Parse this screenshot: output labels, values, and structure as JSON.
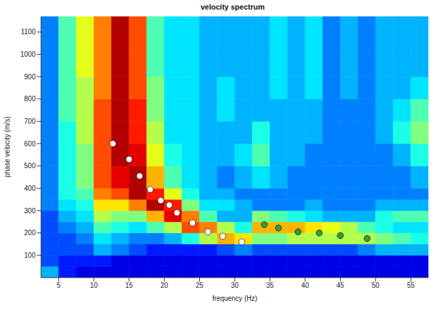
{
  "chart_data": {
    "type": "heatmap",
    "title": "velocity spectrum",
    "x_label": "frequency (Hz)",
    "y_label": "phase velocity (m/s)",
    "xlim": [
      2.5,
      57.5
    ],
    "ylim": [
      0,
      1170
    ],
    "xticks": [
      5,
      10,
      15,
      20,
      25,
      30,
      35,
      40,
      45,
      50,
      55
    ],
    "yticks": [
      100,
      200,
      300,
      400,
      500,
      600,
      700,
      800,
      900,
      1000,
      1100
    ],
    "grid": false,
    "color_range": [
      0,
      1
    ],
    "cells": {
      "x_edges": [
        2.5,
        5,
        7.5,
        10,
        12.5,
        15,
        17.5,
        20,
        22.5,
        25,
        27.5,
        30,
        32.5,
        35,
        37.5,
        40,
        42.5,
        45,
        47.5,
        50,
        52.5,
        55,
        57.5
      ],
      "y_edges": [
        0,
        50,
        100,
        150,
        200,
        250,
        300,
        350,
        400,
        500,
        600,
        700,
        800,
        900,
        1000,
        1170
      ],
      "values": [
        [
          0.3,
          0.15,
          0.1,
          0.1,
          0.1,
          0.1,
          0.1,
          0.1,
          0.1,
          0.1,
          0.1,
          0.1,
          0.1,
          0.1,
          0.1,
          0.1,
          0.1,
          0.1,
          0.1,
          0.1,
          0.1,
          0.1
        ],
        [
          0.2,
          0.15,
          0.15,
          0.15,
          0.1,
          0.1,
          0.1,
          0.1,
          0.1,
          0.1,
          0.1,
          0.1,
          0.1,
          0.1,
          0.1,
          0.1,
          0.1,
          0.1,
          0.1,
          0.1,
          0.1,
          0.1
        ],
        [
          0.2,
          0.2,
          0.2,
          0.3,
          0.25,
          0.2,
          0.15,
          0.15,
          0.15,
          0.15,
          0.2,
          0.25,
          0.2,
          0.2,
          0.2,
          0.2,
          0.2,
          0.2,
          0.25,
          0.3,
          0.3,
          0.3
        ],
        [
          0.2,
          0.2,
          0.25,
          0.35,
          0.3,
          0.25,
          0.25,
          0.3,
          0.4,
          0.55,
          0.7,
          0.65,
          0.5,
          0.5,
          0.55,
          0.55,
          0.55,
          0.55,
          0.55,
          0.5,
          0.45,
          0.4
        ],
        [
          0.2,
          0.25,
          0.3,
          0.45,
          0.4,
          0.35,
          0.45,
          0.55,
          0.8,
          0.75,
          0.55,
          0.4,
          0.7,
          0.7,
          0.7,
          0.65,
          0.6,
          0.55,
          0.45,
          0.4,
          0.35,
          0.35
        ],
        [
          0.2,
          0.3,
          0.35,
          0.55,
          0.5,
          0.5,
          0.7,
          0.9,
          0.75,
          0.45,
          0.3,
          0.3,
          0.5,
          0.45,
          0.4,
          0.35,
          0.3,
          0.3,
          0.3,
          0.4,
          0.45,
          0.45
        ],
        [
          0.25,
          0.35,
          0.4,
          0.65,
          0.65,
          0.75,
          0.95,
          0.85,
          0.5,
          0.35,
          0.35,
          0.3,
          0.25,
          0.25,
          0.25,
          0.3,
          0.25,
          0.25,
          0.25,
          0.3,
          0.3,
          0.3
        ],
        [
          0.25,
          0.4,
          0.45,
          0.75,
          0.8,
          0.95,
          0.85,
          0.6,
          0.4,
          0.3,
          0.3,
          0.25,
          0.25,
          0.25,
          0.25,
          0.25,
          0.25,
          0.25,
          0.25,
          0.25,
          0.25,
          0.25
        ],
        [
          0.25,
          0.4,
          0.5,
          0.8,
          0.9,
          0.95,
          0.7,
          0.45,
          0.35,
          0.3,
          0.25,
          0.3,
          0.35,
          0.3,
          0.25,
          0.25,
          0.25,
          0.25,
          0.25,
          0.25,
          0.25,
          0.3
        ],
        [
          0.25,
          0.4,
          0.5,
          0.8,
          0.95,
          0.9,
          0.6,
          0.4,
          0.35,
          0.3,
          0.3,
          0.35,
          0.45,
          0.3,
          0.3,
          0.25,
          0.25,
          0.25,
          0.25,
          0.25,
          0.3,
          0.4
        ],
        [
          0.25,
          0.4,
          0.55,
          0.8,
          0.95,
          0.85,
          0.55,
          0.35,
          0.35,
          0.3,
          0.3,
          0.3,
          0.4,
          0.3,
          0.3,
          0.3,
          0.25,
          0.25,
          0.25,
          0.3,
          0.4,
          0.5
        ],
        [
          0.25,
          0.45,
          0.55,
          0.8,
          0.95,
          0.85,
          0.5,
          0.35,
          0.35,
          0.3,
          0.35,
          0.3,
          0.3,
          0.3,
          0.3,
          0.3,
          0.25,
          0.25,
          0.25,
          0.3,
          0.35,
          0.45
        ],
        [
          0.25,
          0.45,
          0.55,
          0.75,
          0.95,
          0.8,
          0.5,
          0.35,
          0.35,
          0.3,
          0.35,
          0.3,
          0.3,
          0.35,
          0.3,
          0.35,
          0.25,
          0.3,
          0.25,
          0.3,
          0.3,
          0.35
        ],
        [
          0.25,
          0.45,
          0.6,
          0.75,
          0.95,
          0.8,
          0.45,
          0.35,
          0.35,
          0.3,
          0.3,
          0.3,
          0.3,
          0.35,
          0.3,
          0.35,
          0.25,
          0.3,
          0.25,
          0.3,
          0.3,
          0.3
        ],
        [
          0.25,
          0.45,
          0.6,
          0.75,
          0.95,
          0.8,
          0.45,
          0.35,
          0.35,
          0.3,
          0.3,
          0.3,
          0.3,
          0.35,
          0.3,
          0.35,
          0.25,
          0.3,
          0.25,
          0.3,
          0.3,
          0.3
        ]
      ]
    },
    "series": [
      {
        "color": "#ffffff",
        "marker": "circle",
        "x": [
          12.7,
          15,
          16.5,
          18,
          19.5,
          20.7,
          21.8,
          24,
          26.2,
          28.3,
          31
        ],
        "y": [
          600,
          530,
          455,
          395,
          345,
          325,
          290,
          245,
          205,
          185,
          160
        ]
      },
      {
        "color": "#2e9e3a",
        "marker": "circle",
        "x": [
          34.2,
          36.2,
          39,
          42,
          45,
          48.8
        ],
        "y": [
          237,
          222,
          205,
          200,
          188,
          175
        ]
      }
    ]
  }
}
